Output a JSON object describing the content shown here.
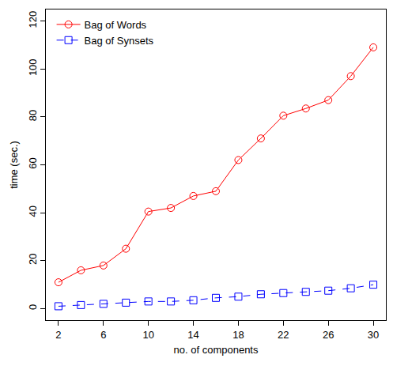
{
  "chart_data": {
    "type": "line",
    "x_label": "no. of components",
    "y_label": "time (sec.)",
    "x": [
      2,
      4,
      6,
      8,
      10,
      12,
      14,
      16,
      18,
      20,
      22,
      24,
      26,
      28,
      30
    ],
    "series": [
      {
        "name": "Bag of Words",
        "color": "#ff0000",
        "marker": "circle-open",
        "line_style": "solid",
        "values": [
          11,
          16,
          18,
          25,
          40.5,
          42,
          47,
          49,
          62,
          71,
          80.5,
          83.5,
          87,
          97,
          109
        ]
      },
      {
        "name": "Bag of Synsets",
        "color": "#0000ff",
        "marker": "square-open",
        "line_style": "dash",
        "values": [
          1,
          1.5,
          2,
          2.5,
          3,
          3,
          3.5,
          4.5,
          5,
          6,
          6.5,
          7,
          7.5,
          8.5,
          10
        ]
      }
    ],
    "xlim": [
      0.88,
      31.12
    ],
    "xticks": [
      2,
      6,
      10,
      14,
      18,
      22,
      26,
      30
    ],
    "ylim": [
      -4.8,
      124.8
    ],
    "yticks": [
      0,
      20,
      40,
      60,
      80,
      100,
      120
    ],
    "grid": false,
    "legend": "top-left"
  }
}
